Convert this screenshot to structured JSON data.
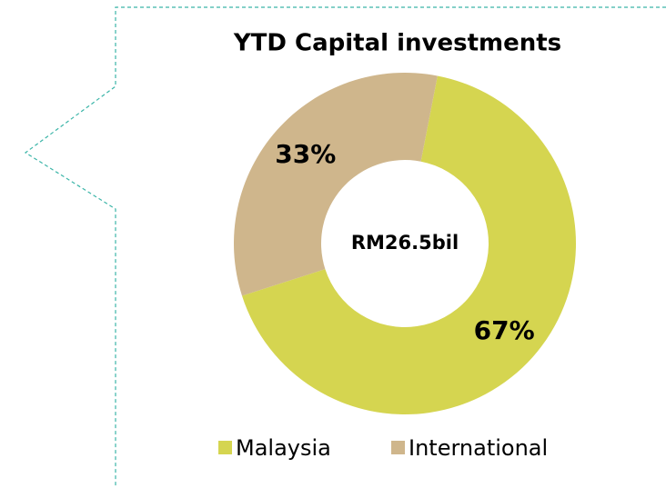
{
  "chart_data": {
    "type": "donut",
    "title": "YTD Capital investments",
    "center_label": "RM26.5bil",
    "categories": [
      "Malaysia",
      "International"
    ],
    "values": [
      67,
      33
    ],
    "value_labels": [
      "67%",
      "33%"
    ],
    "colors": [
      "#d5d550",
      "#cfb68c"
    ],
    "legend": "bottom"
  }
}
